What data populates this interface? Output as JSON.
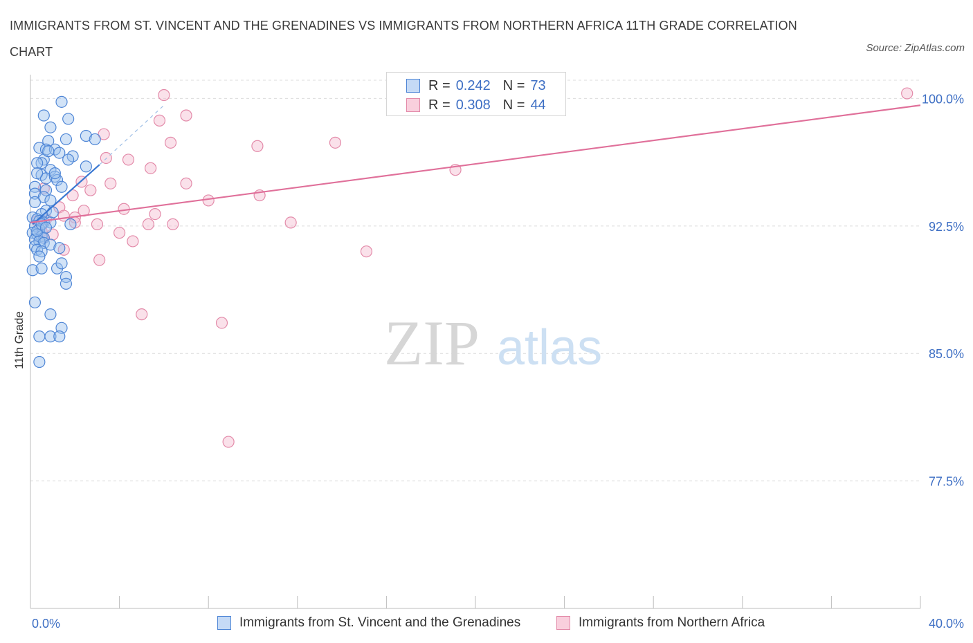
{
  "title": "IMMIGRANTS FROM ST. VINCENT AND THE GRENADINES VS IMMIGRANTS FROM NORTHERN AFRICA 11TH GRADE CORRELATION CHART",
  "source": "Source: ZipAtlas.com",
  "watermark": {
    "zip": "ZIP",
    "atlas": "atlas"
  },
  "colors": {
    "blue_fill": "#9cc0ee",
    "blue_stroke": "#4f86d6",
    "blue_line": "#3a78d2",
    "pink_fill": "#f5bcd0",
    "pink_stroke": "#e38aa9",
    "pink_line": "#e0709a",
    "axis_text": "#3e6fc4",
    "grid": "#dcdcdc"
  },
  "legend": {
    "rows": [
      {
        "r_label": "R =",
        "r_value": "0.242",
        "n_label": "N =",
        "n_value": "73",
        "series": "blue"
      },
      {
        "r_label": "R =",
        "r_value": "0.308",
        "n_label": "N =",
        "n_value": "44",
        "series": "pink"
      }
    ]
  },
  "bottom_legend": [
    {
      "label": "Immigrants from St. Vincent and the Grenadines",
      "series": "blue"
    },
    {
      "label": "Immigrants from Northern Africa",
      "series": "pink"
    }
  ],
  "chart_data": {
    "type": "scatter",
    "title": "IMMIGRANTS FROM ST. VINCENT AND THE GRENADINES VS IMMIGRANTS FROM NORTHERN AFRICA 11TH GRADE CORRELATION CHART",
    "xlabel": "",
    "ylabel": "11th Grade",
    "xlim": [
      0,
      40
    ],
    "ylim": [
      70.0,
      101.4
    ],
    "x_tick_labels": [
      {
        "value": 0,
        "label": "0.0%"
      },
      {
        "value": 40,
        "label": "40.0%"
      }
    ],
    "y_ticks": [
      {
        "value": 100.0,
        "label": "100.0%"
      },
      {
        "value": 92.5,
        "label": "92.5%"
      },
      {
        "value": 85.0,
        "label": "85.0%"
      },
      {
        "value": 77.5,
        "label": "77.5%"
      }
    ],
    "series": [
      {
        "name": "Immigrants from St. Vincent and the Grenadines",
        "color": "blue",
        "trend": {
          "x0": 0.1,
          "y0": 92.6,
          "x1": 3.1,
          "y1": 96.1,
          "dash_to_x": 6.0,
          "dash_to_y": 99.6
        },
        "points": [
          [
            1.4,
            99.8
          ],
          [
            0.6,
            99.0
          ],
          [
            1.7,
            98.8
          ],
          [
            0.9,
            98.3
          ],
          [
            2.5,
            97.8
          ],
          [
            1.6,
            97.6
          ],
          [
            0.8,
            97.5
          ],
          [
            2.9,
            97.6
          ],
          [
            0.4,
            97.1
          ],
          [
            0.7,
            97.0
          ],
          [
            1.1,
            97.0
          ],
          [
            1.3,
            96.8
          ],
          [
            1.9,
            96.6
          ],
          [
            0.6,
            96.4
          ],
          [
            0.5,
            96.2
          ],
          [
            1.7,
            96.4
          ],
          [
            2.5,
            96.0
          ],
          [
            0.3,
            96.2
          ],
          [
            0.9,
            95.8
          ],
          [
            0.5,
            95.5
          ],
          [
            0.7,
            95.3
          ],
          [
            1.1,
            95.4
          ],
          [
            1.2,
            95.2
          ],
          [
            0.2,
            94.8
          ],
          [
            1.4,
            94.8
          ],
          [
            0.7,
            94.6
          ],
          [
            0.2,
            94.4
          ],
          [
            0.6,
            94.2
          ],
          [
            0.9,
            94.0
          ],
          [
            0.7,
            93.4
          ],
          [
            0.5,
            93.2
          ],
          [
            1.0,
            93.3
          ],
          [
            0.1,
            93.0
          ],
          [
            0.3,
            92.9
          ],
          [
            0.4,
            92.8
          ],
          [
            0.6,
            92.7
          ],
          [
            0.9,
            92.7
          ],
          [
            1.8,
            92.6
          ],
          [
            0.2,
            92.5
          ],
          [
            0.4,
            92.3
          ],
          [
            0.1,
            92.1
          ],
          [
            0.3,
            92.0
          ],
          [
            0.5,
            91.9
          ],
          [
            0.6,
            91.8
          ],
          [
            0.2,
            91.7
          ],
          [
            0.4,
            91.6
          ],
          [
            0.6,
            91.5
          ],
          [
            0.2,
            91.3
          ],
          [
            0.9,
            91.4
          ],
          [
            0.3,
            91.1
          ],
          [
            0.5,
            91.0
          ],
          [
            0.4,
            90.7
          ],
          [
            1.3,
            91.2
          ],
          [
            0.1,
            89.9
          ],
          [
            0.5,
            90.0
          ],
          [
            1.2,
            90.0
          ],
          [
            1.4,
            90.3
          ],
          [
            1.6,
            89.5
          ],
          [
            1.6,
            89.1
          ],
          [
            0.2,
            88.0
          ],
          [
            0.9,
            87.3
          ],
          [
            1.4,
            86.5
          ],
          [
            0.4,
            86.0
          ],
          [
            0.9,
            86.0
          ],
          [
            1.3,
            86.0
          ],
          [
            0.4,
            84.5
          ],
          [
            0.2,
            93.9
          ],
          [
            0.8,
            96.9
          ],
          [
            0.3,
            92.2
          ],
          [
            0.5,
            92.6
          ],
          [
            0.7,
            92.4
          ],
          [
            1.1,
            95.6
          ],
          [
            0.3,
            95.6
          ]
        ]
      },
      {
        "name": "Immigrants from Northern Africa",
        "color": "pink",
        "trend": {
          "x0": 0.0,
          "y0": 92.7,
          "x1": 40.0,
          "y1": 99.6
        },
        "points": [
          [
            6.0,
            100.2
          ],
          [
            7.0,
            99.0
          ],
          [
            5.8,
            98.7
          ],
          [
            3.3,
            97.9
          ],
          [
            6.3,
            97.4
          ],
          [
            10.2,
            97.2
          ],
          [
            13.7,
            97.4
          ],
          [
            3.4,
            96.5
          ],
          [
            4.4,
            96.4
          ],
          [
            5.4,
            95.9
          ],
          [
            19.1,
            95.8
          ],
          [
            2.3,
            95.1
          ],
          [
            3.6,
            95.0
          ],
          [
            7.0,
            95.0
          ],
          [
            0.6,
            94.7
          ],
          [
            2.7,
            94.6
          ],
          [
            1.9,
            94.3
          ],
          [
            8.0,
            94.0
          ],
          [
            10.3,
            94.3
          ],
          [
            1.3,
            93.6
          ],
          [
            4.2,
            93.5
          ],
          [
            2.4,
            93.4
          ],
          [
            5.6,
            93.2
          ],
          [
            1.5,
            93.1
          ],
          [
            2.0,
            93.0
          ],
          [
            0.7,
            92.9
          ],
          [
            3.0,
            92.6
          ],
          [
            5.3,
            92.6
          ],
          [
            6.4,
            92.6
          ],
          [
            11.7,
            92.7
          ],
          [
            4.0,
            92.1
          ],
          [
            0.5,
            92.2
          ],
          [
            4.6,
            91.6
          ],
          [
            1.5,
            91.1
          ],
          [
            15.1,
            91.0
          ],
          [
            3.1,
            90.5
          ],
          [
            5.0,
            87.3
          ],
          [
            8.6,
            86.8
          ],
          [
            8.9,
            79.8
          ],
          [
            39.4,
            100.3
          ],
          [
            0.3,
            92.8
          ],
          [
            1.0,
            92.0
          ],
          [
            0.6,
            91.8
          ],
          [
            2.0,
            92.7
          ]
        ]
      }
    ]
  }
}
